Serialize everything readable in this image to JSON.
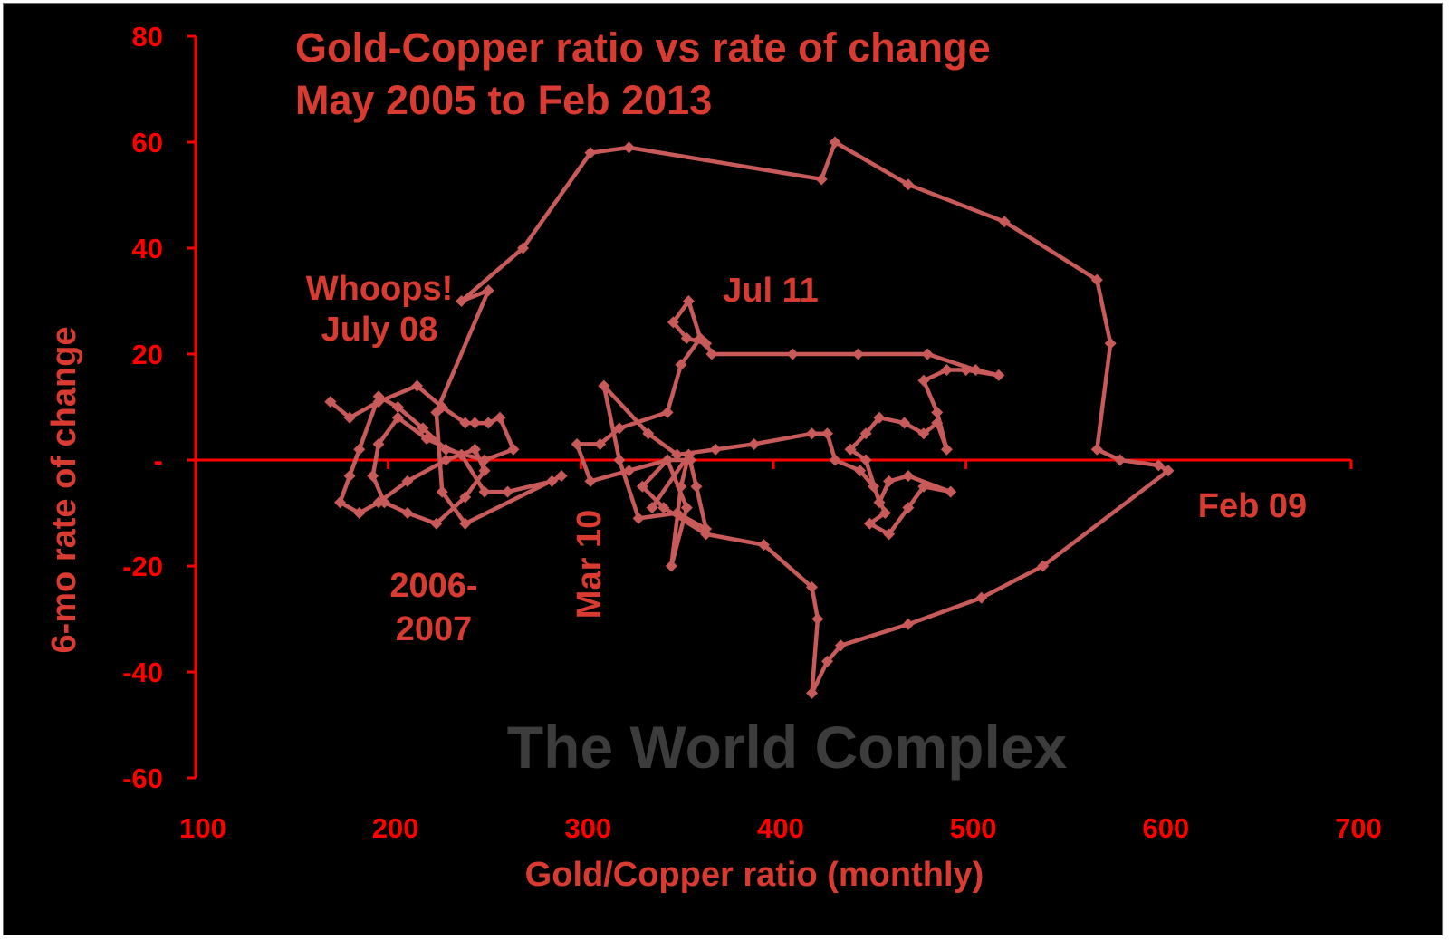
{
  "chart_data": {
    "type": "scatter",
    "title": "Gold-Copper ratio vs rate of change",
    "subtitle": "May 2005 to Feb 2013",
    "xlabel": "Gold/Copper ratio (monthly)",
    "ylabel": "6-mo rate of change",
    "xlim": [
      100,
      700
    ],
    "ylim": [
      -60,
      80
    ],
    "x_ticks": [
      "100",
      "200",
      "300",
      "400",
      "500",
      "600",
      "700"
    ],
    "y_ticks": [
      "80",
      "60",
      "40",
      "20",
      "-",
      "-20",
      "-40",
      "-60"
    ],
    "grid": false,
    "legend": "none",
    "connected": true,
    "color": "#c85a5a",
    "axis_color": "#ff0000",
    "text_color": "#d93b30",
    "points": [
      [
        170,
        11
      ],
      [
        180,
        8
      ],
      [
        195,
        11
      ],
      [
        215,
        14
      ],
      [
        228,
        10
      ],
      [
        240,
        7
      ],
      [
        245,
        7
      ],
      [
        252,
        7
      ],
      [
        258,
        8
      ],
      [
        265,
        2
      ],
      [
        250,
        0
      ],
      [
        230,
        2
      ],
      [
        218,
        6
      ],
      [
        205,
        10
      ],
      [
        195,
        12
      ],
      [
        185,
        2
      ],
      [
        180,
        -3
      ],
      [
        175,
        -8
      ],
      [
        185,
        -10
      ],
      [
        195,
        -8
      ],
      [
        210,
        -4
      ],
      [
        230,
        0
      ],
      [
        245,
        2
      ],
      [
        250,
        -2
      ],
      [
        240,
        -7
      ],
      [
        225,
        -12
      ],
      [
        210,
        -10
      ],
      [
        198,
        -8
      ],
      [
        192,
        -3
      ],
      [
        195,
        3
      ],
      [
        205,
        8
      ],
      [
        220,
        4
      ],
      [
        238,
        1
      ],
      [
        250,
        -6
      ],
      [
        262,
        -6
      ],
      [
        285,
        -4
      ],
      [
        290,
        -3
      ],
      [
        240,
        -12
      ],
      [
        228,
        -6
      ],
      [
        225,
        9
      ],
      [
        252,
        32
      ],
      [
        238,
        30
      ],
      [
        270,
        40
      ],
      [
        305,
        58
      ],
      [
        325,
        59
      ],
      [
        425,
        53
      ],
      [
        432,
        60
      ],
      [
        470,
        52
      ],
      [
        520,
        45
      ],
      [
        568,
        34
      ],
      [
        575,
        22
      ],
      [
        568,
        2
      ],
      [
        580,
        0
      ],
      [
        600,
        -1
      ],
      [
        605,
        -2
      ],
      [
        540,
        -20
      ],
      [
        508,
        -26
      ],
      [
        470,
        -31
      ],
      [
        435,
        -35
      ],
      [
        428,
        -38
      ],
      [
        420,
        -44
      ],
      [
        423,
        -30
      ],
      [
        420,
        -24
      ],
      [
        395,
        -16
      ],
      [
        365,
        -14
      ],
      [
        343,
        -9
      ],
      [
        332,
        -5
      ],
      [
        345,
        0
      ],
      [
        355,
        -9
      ],
      [
        347,
        -20
      ],
      [
        352,
        -5
      ],
      [
        356,
        1
      ],
      [
        337,
        -9
      ],
      [
        356,
        1
      ],
      [
        360,
        -5
      ],
      [
        365,
        -13
      ],
      [
        350,
        -10
      ],
      [
        330,
        -11
      ],
      [
        320,
        0
      ],
      [
        312,
        14
      ],
      [
        335,
        5
      ],
      [
        350,
        1
      ],
      [
        370,
        2
      ],
      [
        390,
        3
      ],
      [
        420,
        5
      ],
      [
        428,
        5
      ],
      [
        432,
        0
      ],
      [
        445,
        -2
      ],
      [
        452,
        -5
      ],
      [
        458,
        -10
      ],
      [
        450,
        -12
      ],
      [
        460,
        -14
      ],
      [
        470,
        -9
      ],
      [
        478,
        -5
      ],
      [
        492,
        -6
      ],
      [
        470,
        -3
      ],
      [
        460,
        -4
      ],
      [
        455,
        -8
      ],
      [
        448,
        0
      ],
      [
        440,
        2
      ],
      [
        448,
        5
      ],
      [
        455,
        8
      ],
      [
        468,
        7
      ],
      [
        478,
        5
      ],
      [
        485,
        7
      ],
      [
        490,
        2
      ],
      [
        485,
        9
      ],
      [
        478,
        15
      ],
      [
        490,
        17
      ],
      [
        500,
        17
      ],
      [
        517,
        16
      ],
      [
        505,
        17
      ],
      [
        480,
        20
      ],
      [
        444,
        20
      ],
      [
        410,
        20
      ],
      [
        368,
        20
      ],
      [
        365,
        22
      ],
      [
        355,
        23
      ],
      [
        348,
        26
      ],
      [
        356,
        30
      ],
      [
        362,
        23
      ],
      [
        352,
        18
      ],
      [
        345,
        9
      ],
      [
        320,
        6
      ],
      [
        310,
        3
      ],
      [
        298,
        3
      ],
      [
        305,
        -4
      ],
      [
        325,
        -2
      ],
      [
        345,
        0
      ],
      [
        357,
        0
      ]
    ],
    "annotations": [
      {
        "lines": [
          "Whoops!",
          "July 08"
        ]
      },
      {
        "lines": [
          "Jul 11"
        ]
      },
      {
        "lines": [
          "Feb 09"
        ]
      },
      {
        "lines": [
          "Mar 10"
        ],
        "rotation": -90
      },
      {
        "lines": [
          "2006-",
          "2007"
        ]
      }
    ],
    "watermark": "The World Complex"
  }
}
